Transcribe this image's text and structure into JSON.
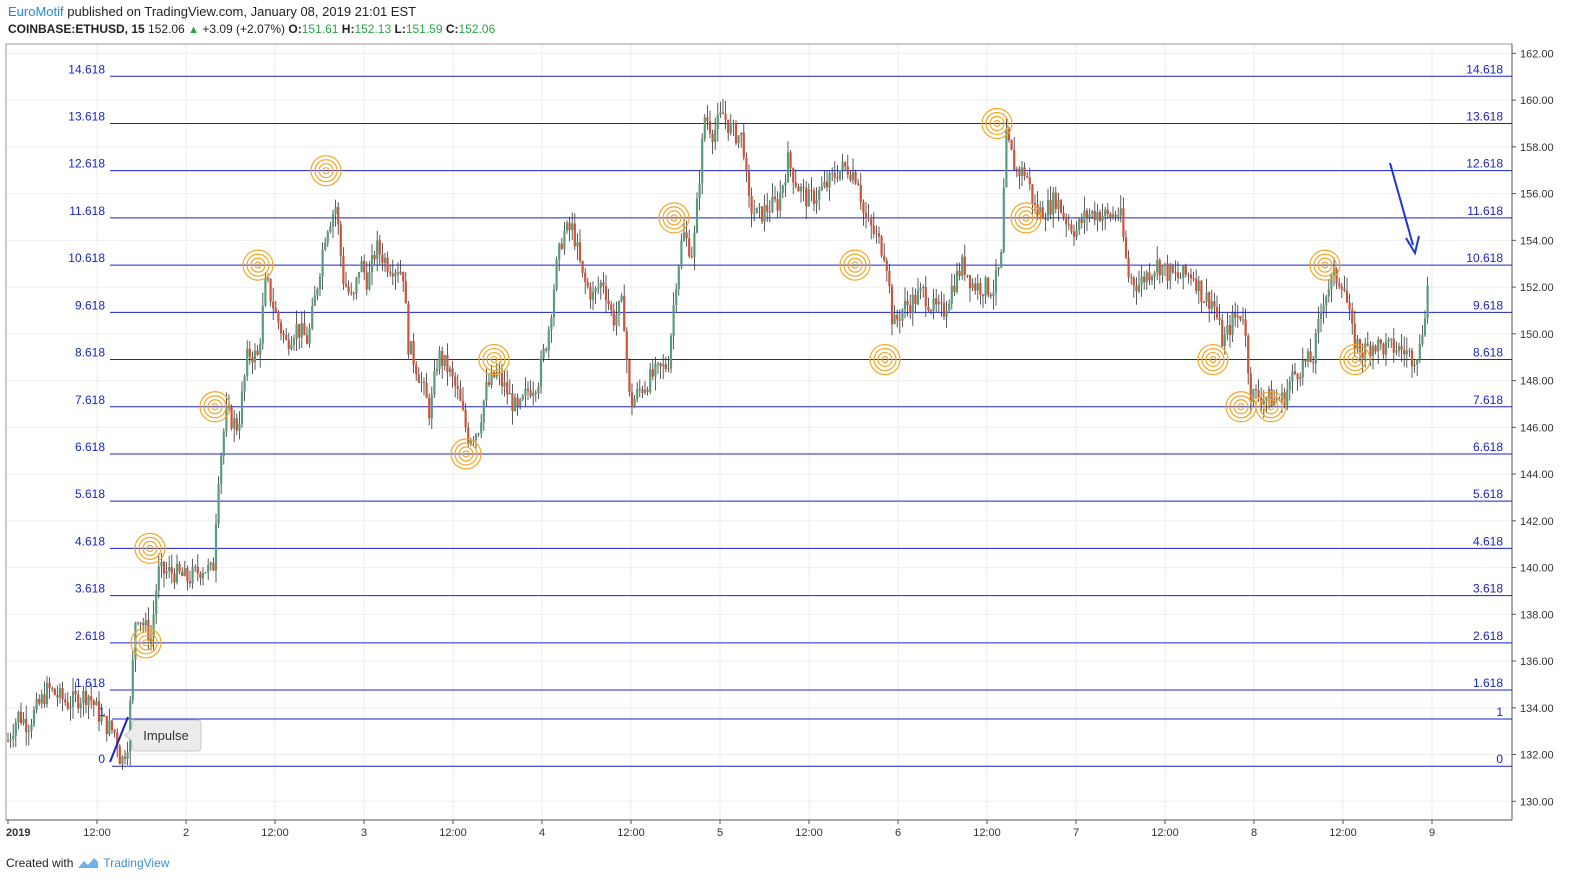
{
  "header": {
    "author": "EuroMotif",
    "published_text": "published on TradingView.com, January 08, 2019 21:01 EST",
    "symbol": "COINBASE:ETHUSD, 15",
    "last": "152.06",
    "change": "+3.09 (+2.07%)",
    "o_label": "O:",
    "o_value": "151.61",
    "h_label": "H:",
    "h_value": "152.13",
    "l_label": "L:",
    "l_value": "151.59",
    "c_label": "C:",
    "c_value": "152.06"
  },
  "footer": {
    "created_with": "Created with",
    "brand": "TradingView"
  },
  "colors": {
    "fib_line": "#1a23c8",
    "fib_label": "#1a23c8",
    "up_candle": "#5a9c78",
    "down_candle": "#d0523a",
    "circle": "#f5a623",
    "arrow": "#1a35d6"
  },
  "annotation": {
    "label": "Impulse"
  },
  "chart_data": {
    "type": "candlestick",
    "title": "",
    "y_axis_ticks": [
      "162.00",
      "160.00",
      "158.00",
      "156.00",
      "154.00",
      "152.00",
      "150.00",
      "148.00",
      "146.00",
      "144.00",
      "142.00",
      "140.00",
      "138.00",
      "136.00",
      "134.00",
      "132.00",
      "130.00"
    ],
    "x_axis_ticks": [
      "2019",
      "12:00",
      "2",
      "12:00",
      "3",
      "12:00",
      "4",
      "12:00",
      "5",
      "12:00",
      "6",
      "12:00",
      "7",
      "12:00",
      "8",
      "12:00",
      "9"
    ],
    "ylim": [
      129.2,
      162.4
    ],
    "grid": true,
    "fib_levels": [
      {
        "label": "0",
        "price": 131.5
      },
      {
        "label": "1",
        "price": 133.52
      },
      {
        "label": "1.618",
        "price": 134.76
      },
      {
        "label": "2.618",
        "price": 136.78
      },
      {
        "label": "3.618",
        "price": 138.8
      },
      {
        "label": "4.618",
        "price": 140.82
      },
      {
        "label": "5.618",
        "price": 142.84
      },
      {
        "label": "6.618",
        "price": 144.86
      },
      {
        "label": "7.618",
        "price": 146.88
      },
      {
        "label": "8.618",
        "price": 148.9
      },
      {
        "label": "9.618",
        "price": 150.92
      },
      {
        "label": "10.618",
        "price": 152.94
      },
      {
        "label": "11.618",
        "price": 154.96
      },
      {
        "label": "12.618",
        "price": 156.98
      },
      {
        "label": "13.618",
        "price": 159.0
      },
      {
        "label": "14.618",
        "price": 161.02
      }
    ],
    "price_path": [
      [
        0,
        132.6
      ],
      [
        10,
        133.7
      ],
      [
        20,
        133.3
      ],
      [
        40,
        134.8
      ],
      [
        60,
        134.2
      ],
      [
        80,
        134.6
      ],
      [
        95,
        133.4
      ],
      [
        108,
        132.9
      ],
      [
        113,
        131.6
      ],
      [
        120,
        132.6
      ],
      [
        125,
        136.0
      ],
      [
        128,
        138.2
      ],
      [
        135,
        137.6
      ],
      [
        143,
        137.0
      ],
      [
        150,
        139.8
      ],
      [
        165,
        139.8
      ],
      [
        180,
        139.5
      ],
      [
        195,
        140.0
      ],
      [
        205,
        139.8
      ],
      [
        210,
        143.8
      ],
      [
        218,
        146.6
      ],
      [
        230,
        146.0
      ],
      [
        240,
        149.2
      ],
      [
        250,
        149.0
      ],
      [
        258,
        152.3
      ],
      [
        268,
        150.8
      ],
      [
        278,
        149.6
      ],
      [
        288,
        150.3
      ],
      [
        300,
        149.7
      ],
      [
        310,
        152.3
      ],
      [
        318,
        154.5
      ],
      [
        328,
        155.5
      ],
      [
        335,
        152.4
      ],
      [
        345,
        151.3
      ],
      [
        352,
        153.1
      ],
      [
        360,
        152.2
      ],
      [
        368,
        153.7
      ],
      [
        380,
        153.0
      ],
      [
        395,
        152.7
      ],
      [
        400,
        149.6
      ],
      [
        410,
        148.4
      ],
      [
        422,
        146.6
      ],
      [
        430,
        149.1
      ],
      [
        440,
        148.5
      ],
      [
        450,
        147.4
      ],
      [
        460,
        145.6
      ],
      [
        470,
        145.9
      ],
      [
        478,
        147.6
      ],
      [
        488,
        148.3
      ],
      [
        498,
        147.6
      ],
      [
        510,
        146.6
      ],
      [
        520,
        147.6
      ],
      [
        530,
        148.0
      ],
      [
        540,
        150.0
      ],
      [
        548,
        152.7
      ],
      [
        555,
        154.3
      ],
      [
        565,
        154.5
      ],
      [
        575,
        152.3
      ],
      [
        585,
        151.6
      ],
      [
        595,
        152.3
      ],
      [
        605,
        150.6
      ],
      [
        615,
        151.3
      ],
      [
        622,
        146.9
      ],
      [
        632,
        147.6
      ],
      [
        645,
        148.2
      ],
      [
        660,
        148.7
      ],
      [
        668,
        152.3
      ],
      [
        675,
        154.3
      ],
      [
        685,
        153.4
      ],
      [
        692,
        157.0
      ],
      [
        697,
        159.4
      ],
      [
        705,
        158.6
      ],
      [
        715,
        159.4
      ],
      [
        725,
        158.6
      ],
      [
        735,
        158.4
      ],
      [
        740,
        155.6
      ],
      [
        750,
        155.0
      ],
      [
        760,
        155.4
      ],
      [
        770,
        155.6
      ],
      [
        780,
        157.4
      ],
      [
        790,
        156.3
      ],
      [
        800,
        155.7
      ],
      [
        810,
        156.0
      ],
      [
        820,
        156.4
      ],
      [
        830,
        157.0
      ],
      [
        840,
        157.1
      ],
      [
        850,
        156.7
      ],
      [
        856,
        155.0
      ],
      [
        866,
        154.3
      ],
      [
        878,
        153.4
      ],
      [
        885,
        150.3
      ],
      [
        895,
        151.1
      ],
      [
        905,
        151.4
      ],
      [
        915,
        151.8
      ],
      [
        925,
        151.1
      ],
      [
        935,
        150.9
      ],
      [
        945,
        152.1
      ],
      [
        955,
        153.0
      ],
      [
        965,
        152.1
      ],
      [
        975,
        152.0
      ],
      [
        985,
        151.9
      ],
      [
        993,
        153.0
      ],
      [
        998,
        158.4
      ],
      [
        1008,
        157.0
      ],
      [
        1018,
        156.9
      ],
      [
        1028,
        155.2
      ],
      [
        1038,
        155.3
      ],
      [
        1048,
        155.8
      ],
      [
        1058,
        154.9
      ],
      [
        1068,
        154.4
      ],
      [
        1078,
        155.1
      ],
      [
        1090,
        155.2
      ],
      [
        1100,
        155.0
      ],
      [
        1112,
        155.2
      ],
      [
        1120,
        152.5
      ],
      [
        1130,
        152.1
      ],
      [
        1140,
        152.6
      ],
      [
        1150,
        153.0
      ],
      [
        1160,
        152.6
      ],
      [
        1170,
        152.4
      ],
      [
        1185,
        152.6
      ],
      [
        1195,
        151.6
      ],
      [
        1205,
        151.4
      ],
      [
        1215,
        149.6
      ],
      [
        1225,
        150.6
      ],
      [
        1235,
        150.9
      ],
      [
        1243,
        147.4
      ],
      [
        1255,
        147.3
      ],
      [
        1265,
        147.2
      ],
      [
        1275,
        147.2
      ],
      [
        1285,
        148.2
      ],
      [
        1295,
        148.7
      ],
      [
        1305,
        148.9
      ],
      [
        1315,
        151.5
      ],
      [
        1325,
        152.4
      ],
      [
        1335,
        152.3
      ],
      [
        1345,
        149.8
      ],
      [
        1355,
        149.2
      ],
      [
        1365,
        149.6
      ],
      [
        1375,
        149.4
      ],
      [
        1385,
        149.4
      ],
      [
        1395,
        149.3
      ],
      [
        1405,
        149.0
      ],
      [
        1412,
        149.4
      ],
      [
        1420,
        152.1
      ]
    ],
    "markers": [
      {
        "x": 146,
        "price": 136.78
      },
      {
        "x": 150,
        "price": 140.82
      },
      {
        "x": 215,
        "price": 146.88
      },
      {
        "x": 258,
        "price": 152.94
      },
      {
        "x": 326,
        "price": 156.98
      },
      {
        "x": 466,
        "price": 144.86
      },
      {
        "x": 494,
        "price": 148.9
      },
      {
        "x": 674,
        "price": 154.96
      },
      {
        "x": 855,
        "price": 152.94
      },
      {
        "x": 885,
        "price": 148.9
      },
      {
        "x": 997,
        "price": 159.0
      },
      {
        "x": 1026,
        "price": 154.96
      },
      {
        "x": 1213,
        "price": 148.9
      },
      {
        "x": 1241,
        "price": 146.88
      },
      {
        "x": 1271,
        "price": 146.88
      },
      {
        "x": 1325,
        "price": 152.94
      },
      {
        "x": 1355,
        "price": 148.9
      }
    ]
  }
}
